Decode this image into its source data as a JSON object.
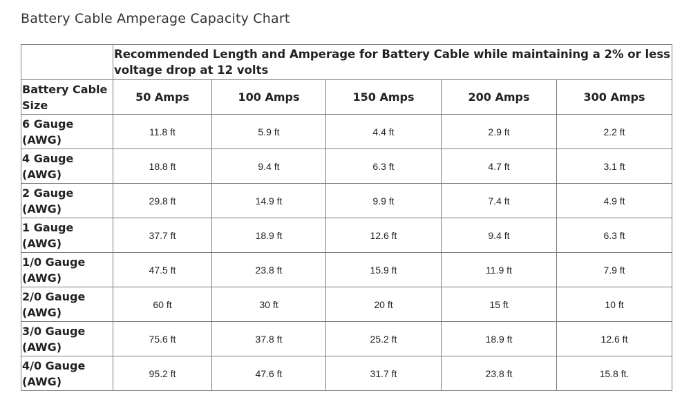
{
  "title": "Battery Cable Amperage Capacity Chart",
  "table": {
    "header_span": "Recommended Length and Amperage for Battery Cable while maintaining a 2% or less voltage drop at 12 volts",
    "size_header": "Battery Cable Size",
    "columns": [
      "50 Amps",
      "100 Amps",
      "150 Amps",
      "200 Amps",
      "300 Amps"
    ],
    "rows": [
      {
        "label": "6 Gauge (AWG)",
        "values": [
          "11.8 ft",
          "5.9 ft",
          "4.4 ft",
          "2.9 ft",
          "2.2 ft"
        ]
      },
      {
        "label": "4 Gauge (AWG)",
        "values": [
          "18.8 ft",
          "9.4 ft",
          "6.3 ft",
          "4.7 ft",
          "3.1 ft"
        ]
      },
      {
        "label": "2 Gauge (AWG)",
        "values": [
          "29.8 ft",
          "14.9 ft",
          "9.9 ft",
          "7.4 ft",
          "4.9 ft"
        ]
      },
      {
        "label": "1 Gauge (AWG)",
        "values": [
          "37.7 ft",
          "18.9 ft",
          "12.6 ft",
          "9.4 ft",
          "6.3 ft"
        ]
      },
      {
        "label": "1/0 Gauge (AWG)",
        "values": [
          "47.5 ft",
          "23.8 ft",
          "15.9 ft",
          "11.9 ft",
          "7.9 ft"
        ]
      },
      {
        "label": "2/0 Gauge (AWG)",
        "values": [
          "60 ft",
          "30 ft",
          "20 ft",
          "15 ft",
          "10 ft"
        ]
      },
      {
        "label": "3/0 Gauge (AWG)",
        "values": [
          "75.6 ft",
          "37.8 ft",
          "25.2 ft",
          "18.9 ft",
          "12.6 ft"
        ]
      },
      {
        "label": "4/0 Gauge (AWG)",
        "values": [
          "95.2 ft",
          "47.6 ft",
          "31.7 ft",
          "23.8 ft",
          "15.8 ft."
        ]
      }
    ]
  }
}
